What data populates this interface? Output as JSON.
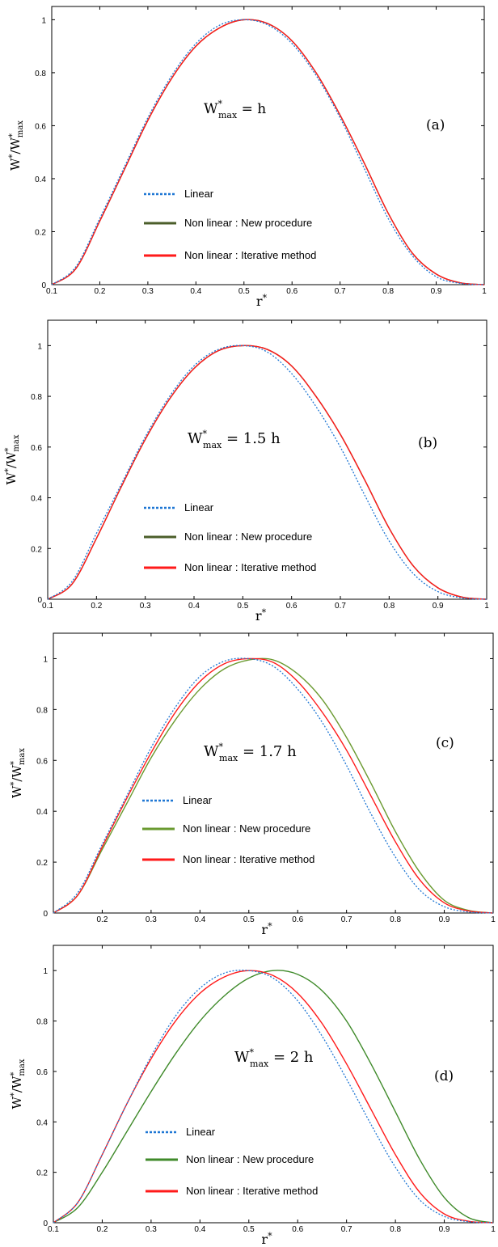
{
  "chart_data": [
    {
      "type": "line",
      "panel_label": "(a)",
      "annotation": {
        "main": "W",
        "sup": "*",
        "sub": "max",
        "suffix": " = h"
      },
      "xlabel": "r*",
      "ylabel": "W*/W*max",
      "xlim": [
        0.1,
        1.0
      ],
      "ylim": [
        0,
        1.05
      ],
      "xticks": [
        "0.1",
        "0.2",
        "0.3",
        "0.4",
        "0.5",
        "0.6",
        "0.7",
        "0.8",
        "0.9",
        "1"
      ],
      "yticks": [
        "0",
        "0.2",
        "0.4",
        "0.6",
        "0.8",
        "1"
      ],
      "legend": [
        "Linear",
        "Non linear : New procedure",
        "Non linear : Iterative method"
      ],
      "colors": {
        "linear": "#1f77d4",
        "new": "#4b5e2a",
        "iter": "#ff1a1a"
      },
      "series": [
        {
          "name": "Linear",
          "style": "dotted",
          "x": [
            0.1,
            0.15,
            0.2,
            0.25,
            0.3,
            0.35,
            0.4,
            0.45,
            0.5,
            0.55,
            0.6,
            0.65,
            0.7,
            0.75,
            0.8,
            0.85,
            0.9,
            0.95,
            1.0
          ],
          "y": [
            0,
            0.067,
            0.25,
            0.44,
            0.63,
            0.79,
            0.91,
            0.98,
            1.0,
            0.98,
            0.91,
            0.79,
            0.63,
            0.44,
            0.25,
            0.11,
            0.03,
            0.005,
            0
          ]
        },
        {
          "name": "Non linear : New procedure",
          "style": "solid",
          "x": [
            0.1,
            0.15,
            0.2,
            0.25,
            0.3,
            0.35,
            0.4,
            0.45,
            0.5,
            0.55,
            0.6,
            0.65,
            0.7,
            0.75,
            0.8,
            0.85,
            0.9,
            0.95,
            1.0
          ],
          "y": [
            0,
            0.06,
            0.24,
            0.43,
            0.62,
            0.78,
            0.9,
            0.97,
            1.0,
            0.985,
            0.92,
            0.8,
            0.64,
            0.46,
            0.27,
            0.12,
            0.04,
            0.007,
            0
          ]
        },
        {
          "name": "Non linear : Iterative method",
          "style": "solid",
          "x": [
            0.1,
            0.15,
            0.2,
            0.25,
            0.3,
            0.35,
            0.4,
            0.45,
            0.5,
            0.55,
            0.6,
            0.65,
            0.7,
            0.75,
            0.8,
            0.85,
            0.9,
            0.95,
            1.0
          ],
          "y": [
            0,
            0.06,
            0.24,
            0.43,
            0.62,
            0.78,
            0.9,
            0.97,
            1.0,
            0.985,
            0.92,
            0.8,
            0.64,
            0.46,
            0.27,
            0.12,
            0.04,
            0.007,
            0
          ]
        }
      ]
    },
    {
      "type": "line",
      "panel_label": "(b)",
      "annotation": {
        "main": "W",
        "sup": "*",
        "sub": "max",
        "suffix": " = 1.5 h"
      },
      "xlabel": "r*",
      "ylabel": "W*/W*max",
      "xlim": [
        0.1,
        1.0
      ],
      "ylim": [
        0,
        1.1
      ],
      "xticks": [
        "0.1",
        "0.2",
        "0.3",
        "0.4",
        "0.5",
        "0.6",
        "0.7",
        "0.8",
        "0.9",
        "1"
      ],
      "yticks": [
        "0",
        "0.2",
        "0.4",
        "0.6",
        "0.8",
        "1"
      ],
      "legend": [
        "Linear",
        "Non linear : New procedure",
        "Non linear : Iterative method"
      ],
      "colors": {
        "linear": "#1f77d4",
        "new": "#4b5e2a",
        "iter": "#ff1a1a"
      },
      "series": [
        {
          "name": "Linear",
          "style": "dotted",
          "x": [
            0.1,
            0.15,
            0.2,
            0.25,
            0.3,
            0.35,
            0.4,
            0.45,
            0.5,
            0.55,
            0.6,
            0.65,
            0.7,
            0.75,
            0.8,
            0.85,
            0.9,
            0.95,
            1.0
          ],
          "y": [
            0,
            0.07,
            0.26,
            0.45,
            0.64,
            0.8,
            0.92,
            0.985,
            1.0,
            0.975,
            0.89,
            0.76,
            0.6,
            0.41,
            0.23,
            0.1,
            0.03,
            0.005,
            0
          ]
        },
        {
          "name": "Non linear : New procedure",
          "style": "solid",
          "x": [
            0.1,
            0.15,
            0.2,
            0.25,
            0.3,
            0.35,
            0.4,
            0.45,
            0.5,
            0.55,
            0.6,
            0.65,
            0.7,
            0.75,
            0.8,
            0.85,
            0.9,
            0.95,
            1.0
          ],
          "y": [
            0,
            0.06,
            0.24,
            0.44,
            0.63,
            0.79,
            0.91,
            0.98,
            1.0,
            0.985,
            0.92,
            0.8,
            0.65,
            0.47,
            0.28,
            0.13,
            0.045,
            0.008,
            0
          ]
        },
        {
          "name": "Non linear : Iterative method",
          "style": "solid",
          "x": [
            0.1,
            0.15,
            0.2,
            0.25,
            0.3,
            0.35,
            0.4,
            0.45,
            0.5,
            0.55,
            0.6,
            0.65,
            0.7,
            0.75,
            0.8,
            0.85,
            0.9,
            0.95,
            1.0
          ],
          "y": [
            0,
            0.06,
            0.24,
            0.44,
            0.63,
            0.79,
            0.91,
            0.98,
            1.0,
            0.985,
            0.92,
            0.8,
            0.65,
            0.47,
            0.28,
            0.13,
            0.045,
            0.008,
            0
          ]
        }
      ]
    },
    {
      "type": "line",
      "panel_label": "(c)",
      "annotation": {
        "main": "W",
        "sup": "*",
        "sub": "max",
        "suffix": " = 1.7 h"
      },
      "xlabel": "r*",
      "ylabel": "W*/W*max",
      "xlim": [
        0.1,
        1.0
      ],
      "ylim": [
        0,
        1.1
      ],
      "xticks": [
        "",
        "0.2",
        "0.3",
        "0.4",
        "0.5",
        "0.6",
        "0.7",
        "0.8",
        "0.9",
        "1"
      ],
      "yticks": [
        "0",
        "0.2",
        "0.4",
        "0.6",
        "0.8",
        "1"
      ],
      "legend": [
        "Linear",
        "Non linear : New procedure",
        "Non linear : Iterative method"
      ],
      "colors": {
        "linear": "#1f77d4",
        "new": "#6a9a30",
        "iter": "#ff1a1a"
      },
      "series": [
        {
          "name": "Linear",
          "style": "dotted",
          "x": [
            0.1,
            0.15,
            0.2,
            0.25,
            0.3,
            0.35,
            0.4,
            0.45,
            0.5,
            0.55,
            0.6,
            0.65,
            0.7,
            0.75,
            0.8,
            0.85,
            0.9,
            0.95,
            1.0
          ],
          "y": [
            0,
            0.08,
            0.27,
            0.46,
            0.65,
            0.81,
            0.93,
            0.99,
            1.0,
            0.97,
            0.88,
            0.75,
            0.58,
            0.39,
            0.22,
            0.09,
            0.025,
            0.004,
            0
          ]
        },
        {
          "name": "Non linear : New procedure",
          "style": "solid",
          "x": [
            0.1,
            0.15,
            0.2,
            0.25,
            0.3,
            0.35,
            0.4,
            0.45,
            0.5,
            0.55,
            0.6,
            0.65,
            0.7,
            0.75,
            0.8,
            0.85,
            0.9,
            0.95,
            1.0
          ],
          "y": [
            0,
            0.07,
            0.25,
            0.43,
            0.61,
            0.76,
            0.88,
            0.96,
            0.995,
            0.995,
            0.94,
            0.84,
            0.69,
            0.51,
            0.32,
            0.16,
            0.05,
            0.01,
            0
          ]
        },
        {
          "name": "Non linear : Iterative method",
          "style": "solid",
          "x": [
            0.1,
            0.15,
            0.2,
            0.25,
            0.3,
            0.35,
            0.4,
            0.45,
            0.5,
            0.55,
            0.6,
            0.65,
            0.7,
            0.75,
            0.8,
            0.85,
            0.9,
            0.95,
            1.0
          ],
          "y": [
            0,
            0.07,
            0.26,
            0.45,
            0.63,
            0.79,
            0.91,
            0.98,
            1.0,
            0.985,
            0.91,
            0.79,
            0.64,
            0.46,
            0.28,
            0.13,
            0.04,
            0.008,
            0
          ]
        }
      ]
    },
    {
      "type": "line",
      "panel_label": "(d)",
      "annotation": {
        "main": "W",
        "sup": "*",
        "sub": "max",
        "suffix": " = 2 h"
      },
      "xlabel": "r*",
      "ylabel": "W*/W*max",
      "xlim": [
        0.1,
        1.0
      ],
      "ylim": [
        0,
        1.1
      ],
      "xticks": [
        "0.1",
        "0.2",
        "0.3",
        "0.4",
        "0.5",
        "0.6",
        "0.7",
        "0.8",
        "0.9",
        "1"
      ],
      "yticks": [
        "0",
        "0.2",
        "0.4",
        "0.6",
        "0.8",
        "1"
      ],
      "legend": [
        "Linear",
        "Non linear : New procedure",
        "Non linear : Iterative method"
      ],
      "colors": {
        "linear": "#1f77d4",
        "new": "#3f8a2a",
        "iter": "#ff1a1a"
      },
      "series": [
        {
          "name": "Linear",
          "style": "dotted",
          "x": [
            0.1,
            0.15,
            0.2,
            0.25,
            0.3,
            0.35,
            0.4,
            0.45,
            0.5,
            0.55,
            0.6,
            0.65,
            0.7,
            0.75,
            0.8,
            0.85,
            0.9,
            0.95,
            1.0
          ],
          "y": [
            0,
            0.08,
            0.27,
            0.47,
            0.66,
            0.82,
            0.93,
            0.99,
            1.0,
            0.97,
            0.88,
            0.74,
            0.57,
            0.39,
            0.22,
            0.09,
            0.025,
            0.004,
            0
          ]
        },
        {
          "name": "Non linear : New procedure",
          "style": "solid",
          "x": [
            0.1,
            0.15,
            0.2,
            0.25,
            0.3,
            0.35,
            0.4,
            0.45,
            0.5,
            0.55,
            0.6,
            0.65,
            0.7,
            0.75,
            0.8,
            0.85,
            0.9,
            0.95,
            1.0
          ],
          "y": [
            0,
            0.06,
            0.2,
            0.36,
            0.52,
            0.67,
            0.8,
            0.9,
            0.97,
            1.0,
            0.985,
            0.92,
            0.8,
            0.63,
            0.44,
            0.25,
            0.1,
            0.02,
            0
          ]
        },
        {
          "name": "Non linear : Iterative method",
          "style": "solid",
          "x": [
            0.1,
            0.15,
            0.2,
            0.25,
            0.3,
            0.35,
            0.4,
            0.45,
            0.5,
            0.55,
            0.6,
            0.65,
            0.7,
            0.75,
            0.8,
            0.85,
            0.9,
            0.95,
            1.0
          ],
          "y": [
            0,
            0.08,
            0.27,
            0.47,
            0.65,
            0.8,
            0.91,
            0.975,
            1.0,
            0.98,
            0.91,
            0.79,
            0.63,
            0.45,
            0.27,
            0.12,
            0.035,
            0.006,
            0
          ]
        }
      ]
    }
  ]
}
